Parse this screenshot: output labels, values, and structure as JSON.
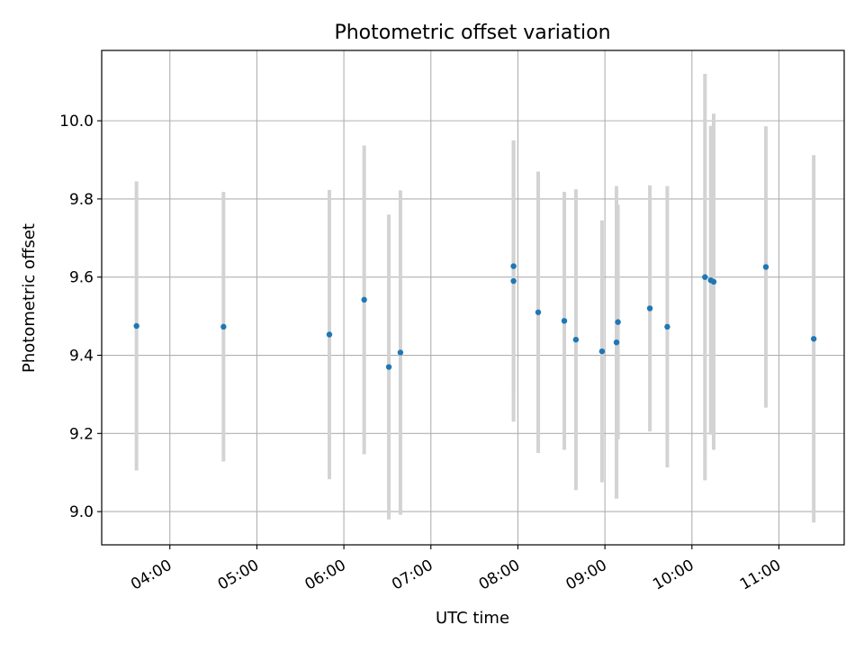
{
  "chart_data": {
    "type": "scatter",
    "title": "Photometric offset variation",
    "xlabel": "UTC time",
    "ylabel": "Photometric offset",
    "x_ticks": [
      "04:00",
      "05:00",
      "06:00",
      "07:00",
      "08:00",
      "09:00",
      "10:00",
      "11:00"
    ],
    "y_ticks": [
      "9.0",
      "9.2",
      "9.4",
      "9.6",
      "9.8",
      "10.0"
    ],
    "xlim": [
      "03:13",
      "11:45"
    ],
    "ylim": [
      8.915,
      10.18
    ],
    "grid": true,
    "point_color": "#1f77b4",
    "errorbar_color": "#d3d3d3",
    "points": [
      {
        "x": "03:37",
        "y": 9.475,
        "err": 0.37
      },
      {
        "x": "04:37",
        "y": 9.473,
        "err": 0.345
      },
      {
        "x": "05:50",
        "y": 9.453,
        "err": 0.37
      },
      {
        "x": "06:14",
        "y": 9.542,
        "err": 0.395
      },
      {
        "x": "06:31",
        "y": 9.37,
        "err": 0.39
      },
      {
        "x": "06:39",
        "y": 9.407,
        "err": 0.415
      },
      {
        "x": "07:57",
        "y": 9.628,
        "err": 0.32
      },
      {
        "x": "07:57",
        "y": 9.59,
        "err": 0.36
      },
      {
        "x": "08:14",
        "y": 9.51,
        "err": 0.36
      },
      {
        "x": "08:32",
        "y": 9.488,
        "err": 0.33
      },
      {
        "x": "08:40",
        "y": 9.44,
        "err": 0.385
      },
      {
        "x": "08:58",
        "y": 9.41,
        "err": 0.335
      },
      {
        "x": "09:08",
        "y": 9.433,
        "err": 0.4
      },
      {
        "x": "09:09",
        "y": 9.485,
        "err": 0.3
      },
      {
        "x": "09:31",
        "y": 9.52,
        "err": 0.315
      },
      {
        "x": "09:43",
        "y": 9.473,
        "err": 0.36
      },
      {
        "x": "10:09",
        "y": 9.6,
        "err": 0.52
      },
      {
        "x": "10:13",
        "y": 9.592,
        "err": 0.395
      },
      {
        "x": "10:15",
        "y": 9.588,
        "err": 0.43
      },
      {
        "x": "10:51",
        "y": 9.626,
        "err": 0.36
      },
      {
        "x": "11:24",
        "y": 9.442,
        "err": 0.47
      }
    ]
  }
}
